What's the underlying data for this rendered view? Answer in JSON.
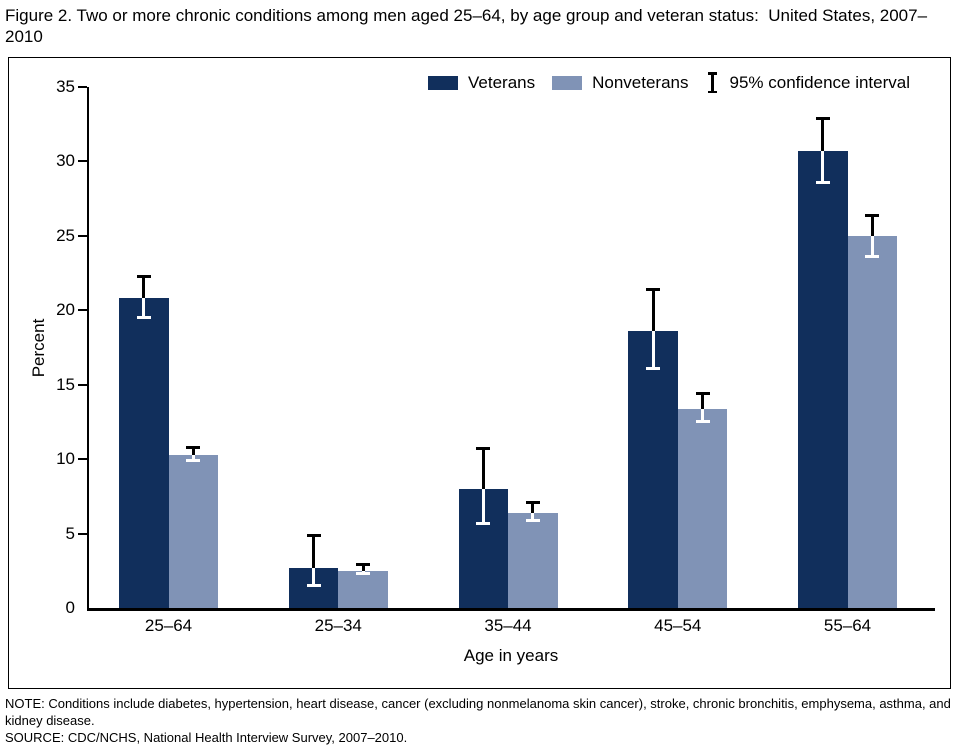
{
  "title": "Figure 2. Two or more chronic conditions among men aged 25–64, by age group and veteran status:  United States, 2007–2010",
  "legend": {
    "ci_label": "95% confidence interval",
    "ci_icon": "error-bar-icon"
  },
  "chart_data": {
    "type": "bar",
    "title": "Two or more chronic conditions among men aged 25–64, by age group and veteran status: United States, 2007–2010",
    "categories": [
      "25–64",
      "25–34",
      "35–44",
      "45–54",
      "55–64"
    ],
    "series": [
      {
        "name": "Veterans",
        "color": "#112f5c",
        "values": [
          20.8,
          2.7,
          8.0,
          18.6,
          30.7
        ],
        "ci_low": [
          19.4,
          1.4,
          5.6,
          16.0,
          28.5
        ],
        "ci_high": [
          22.4,
          5.0,
          10.8,
          21.5,
          33.0
        ]
      },
      {
        "name": "Nonveterans",
        "color": "#8093b6",
        "values": [
          10.3,
          2.5,
          6.4,
          13.4,
          25.0
        ],
        "ci_low": [
          9.8,
          2.2,
          5.8,
          12.4,
          23.5
        ],
        "ci_high": [
          10.9,
          3.0,
          7.2,
          14.5,
          26.5
        ]
      }
    ],
    "error_bars": "95% confidence interval",
    "xlabel": "Age in years",
    "ylabel": "Percent",
    "ylim": [
      0,
      35
    ],
    "y_ticks": [
      0,
      5,
      10,
      15,
      20,
      25,
      30,
      35
    ],
    "grid": "off",
    "legend_position": "top-right-inside"
  },
  "notes": {
    "note": "NOTE: Conditions include diabetes, hypertension, heart disease, cancer (excluding nonmelanoma skin cancer), stroke, chronic bronchitis, emphysema, asthma, and kidney disease.",
    "source": "SOURCE: CDC/NCHS, National Health Interview Survey, 2007–2010."
  }
}
